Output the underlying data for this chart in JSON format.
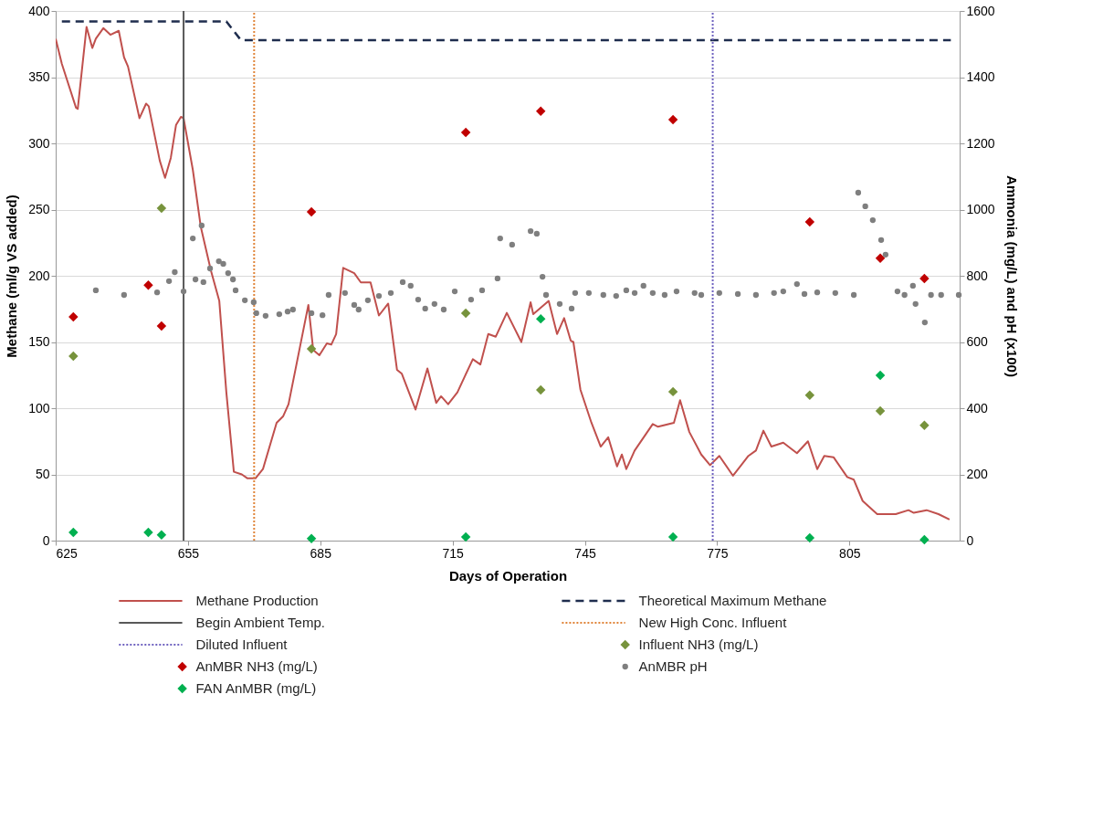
{
  "chart_data": {
    "type": "line",
    "xlabel": "Days of Operation",
    "ylabel": "Methane (ml/g VS added)",
    "y2label": "Ammonia (mg/L) and pH (x100)",
    "xlim": [
      625,
      830
    ],
    "xticks": [
      625,
      655,
      685,
      715,
      745,
      775,
      805
    ],
    "ylim": [
      0,
      400
    ],
    "yticks": [
      0,
      50,
      100,
      150,
      200,
      250,
      300,
      350,
      400
    ],
    "y2lim": [
      0,
      1600
    ],
    "y2ticks": [
      0,
      200,
      400,
      600,
      800,
      1000,
      1200,
      1400,
      1600
    ],
    "grid": "y",
    "legend": "bottom",
    "series": [
      {
        "name": "Methane Production",
        "color": "#c0504d",
        "line_style": "solid",
        "x": [
          625,
          626.4,
          629.6,
          630,
          632,
          633.3,
          634.1,
          635.8,
          637.4,
          639.3,
          640.5,
          641.4,
          644,
          645.5,
          646.1,
          648.6,
          649.8,
          651.1,
          652.3,
          653.4,
          654,
          656.1,
          657.9,
          660.2,
          662.1,
          663.7,
          665.4,
          667.2,
          668.5,
          670.3,
          672,
          675.1,
          676.6,
          677.8,
          682.3,
          683.4,
          684.8,
          686.5,
          687.5,
          688.6,
          690.2,
          692.7,
          694.2,
          696.4,
          698.3,
          700.4,
          702.4,
          703.5,
          706.6,
          709.3,
          711.3,
          712.4,
          714,
          716.1,
          719.6,
          721.3,
          723.1,
          724.8,
          727.3,
          730.6,
          732.7,
          733.3,
          736.8,
          738.7,
          740.3,
          741.8,
          742.4,
          744,
          746.5,
          748.6,
          750.3,
          752.3,
          753.4,
          754.4,
          756.3,
          760.4,
          761.6,
          765.2,
          766.6,
          768.7,
          771.4,
          773.4,
          775.5,
          778.6,
          782.1,
          783.8,
          785.5,
          787.3,
          790,
          793.1,
          795.6,
          797.7,
          799.3,
          801.4,
          804.5,
          806,
          808,
          809.3,
          811.3,
          815.5,
          818.4,
          819.6,
          822.5,
          825.2,
          827.7
        ],
        "values": [
          379,
          360,
          327,
          326,
          388,
          372,
          379,
          387,
          382,
          385,
          365,
          358,
          319,
          330,
          328,
          287,
          274,
          289,
          314,
          320,
          319,
          280,
          237,
          204,
          181,
          112,
          52,
          50,
          47,
          47,
          54,
          89,
          94,
          103,
          178,
          144,
          140,
          149,
          148,
          156,
          206,
          202,
          195,
          195,
          170,
          179,
          129,
          126,
          99,
          130,
          104,
          109,
          103,
          112,
          137,
          133,
          156,
          154,
          172,
          150,
          180,
          171,
          181,
          156,
          168,
          151,
          150,
          114,
          89,
          71,
          78,
          56,
          65,
          54,
          68,
          88,
          86,
          89,
          106,
          82,
          65,
          57,
          64,
          49,
          64,
          68,
          83,
          71,
          74,
          66,
          75,
          54,
          64,
          63,
          48,
          46,
          30,
          26,
          20,
          20,
          23,
          21,
          23,
          20,
          16
        ]
      },
      {
        "name": "Theoretical Maximum Methane",
        "color": "#1f2d4e",
        "line_style": "dashed",
        "x": [
          626.4,
          663.7,
          667,
          828
        ],
        "values": [
          392,
          392,
          378,
          378
        ]
      },
      {
        "name": "Begin Ambient Temp.",
        "color": "#595959",
        "line_style": "solid",
        "x": [
          654,
          654
        ],
        "values": [
          0,
          400
        ]
      },
      {
        "name": "New High Conc. Influent",
        "color": "#e0853a",
        "line_style": "dotted",
        "x": [
          670,
          670
        ],
        "values": [
          0,
          400
        ]
      },
      {
        "name": "Diluted Influent",
        "color": "#6f63c0",
        "line_style": "dotted",
        "x": [
          774,
          774
        ],
        "values": [
          0,
          400
        ]
      },
      {
        "name": "Influent NH3 (mg/L)",
        "type": "scatter",
        "axis": "y2",
        "marker": "diamond",
        "color": "#77933c",
        "x": [
          629,
          649,
          683,
          718,
          735,
          765,
          796,
          812,
          822
        ],
        "values": [
          557,
          1004,
          579,
          687,
          455,
          450,
          439,
          392,
          348
        ]
      },
      {
        "name": "AnMBR NH3 (mg/L)",
        "type": "scatter",
        "axis": "y2",
        "marker": "diamond",
        "color": "#c00000",
        "x": [
          629,
          646,
          649,
          683,
          718,
          735,
          765,
          796,
          812,
          822
        ],
        "values": [
          676,
          772,
          648,
          993,
          1233,
          1297,
          1272,
          963,
          853,
          792
        ]
      },
      {
        "name": "AnMBR pH",
        "type": "scatter",
        "axis": "y2",
        "marker": "circle",
        "color": "#7f7f7f",
        "x": [
          634.1,
          640.5,
          648,
          650.7,
          652,
          654,
          656.1,
          656.7,
          658.1,
          658.5,
          660,
          662,
          663,
          664.1,
          665.2,
          665.8,
          667.9,
          669.9,
          670.5,
          672.6,
          675.7,
          677.6,
          678.8,
          683,
          685.5,
          686.9,
          690.6,
          692.7,
          693.7,
          695.8,
          698.3,
          701,
          703.7,
          705.5,
          707.2,
          708.8,
          710.9,
          713,
          715.5,
          719.2,
          721.7,
          725.2,
          725.8,
          728.5,
          732.7,
          734.1,
          735.4,
          736.2,
          739.3,
          742,
          742.8,
          745.9,
          749.2,
          752.1,
          754.4,
          756.3,
          758.3,
          760.4,
          763.1,
          765.8,
          769.9,
          771.4,
          775.5,
          779.7,
          783.8,
          787.9,
          790,
          793.1,
          794.8,
          797.7,
          801.8,
          806,
          807,
          808.6,
          810.3,
          812.2,
          813.2,
          815.9,
          817.5,
          819.4,
          820,
          822.1,
          823.5,
          825.8,
          829.8
        ],
        "values": [
          756,
          742,
          750,
          784,
          811,
          753,
          913,
          789,
          952,
          781,
          822,
          844,
          836,
          808,
          789,
          756,
          726,
          720,
          687,
          679,
          684,
          692,
          698,
          687,
          681,
          742,
          748,
          712,
          698,
          726,
          739,
          748,
          781,
          770,
          728,
          701,
          715,
          698,
          753,
          728,
          756,
          792,
          913,
          894,
          935,
          927,
          797,
          742,
          715,
          701,
          748,
          748,
          742,
          739,
          756,
          748,
          770,
          748,
          742,
          753,
          748,
          742,
          748,
          745,
          742,
          748,
          753,
          775,
          745,
          750,
          748,
          742,
          1051,
          1010,
          968,
          908,
          864,
          753,
          742,
          770,
          715,
          659,
          742,
          742,
          742
        ]
      },
      {
        "name": "FAN AnMBR (mg/L)",
        "type": "scatter",
        "axis": "y2",
        "marker": "diamond",
        "color": "#00b050",
        "x": [
          629,
          646,
          649,
          683,
          718,
          735,
          765,
          796,
          812,
          822
        ],
        "values": [
          25,
          25,
          17,
          6,
          11,
          670,
          11,
          8,
          499,
          3
        ]
      }
    ]
  }
}
